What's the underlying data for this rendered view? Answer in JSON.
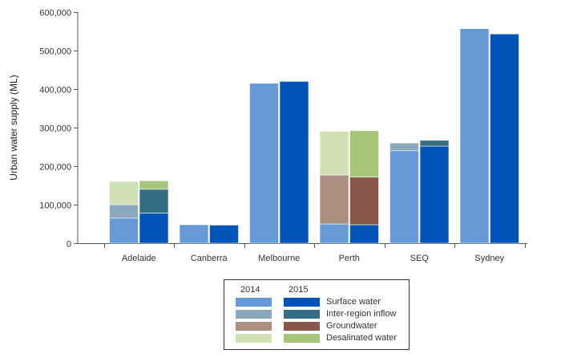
{
  "chart_data": {
    "type": "bar",
    "stacked": true,
    "grouped_by_year": true,
    "title": "",
    "xlabel": "",
    "ylabel": "Urban water supply (ML)",
    "ylim": [
      0,
      600000
    ],
    "yticks": [
      0,
      100000,
      200000,
      300000,
      400000,
      500000,
      600000
    ],
    "ytick_labels": [
      "0",
      "100,000",
      "200,000",
      "300,000",
      "400,000",
      "500,000",
      "600,000"
    ],
    "categories": [
      "Adelaide",
      "Canberra",
      "Melbourne",
      "Perth",
      "SEQ",
      "Sydney"
    ],
    "years": [
      "2014",
      "2015"
    ],
    "series": [
      {
        "name": "Surface water",
        "colors": {
          "2014": "#6699d6",
          "2015": "#0054b8"
        },
        "values": {
          "2014": [
            65000,
            48000,
            415000,
            50000,
            240000,
            557000
          ],
          "2015": [
            78000,
            47000,
            420000,
            48000,
            252000,
            543000
          ]
        }
      },
      {
        "name": "Inter-region inflow",
        "colors": {
          "2014": "#8aa9bc",
          "2015": "#336e86"
        },
        "values": {
          "2014": [
            35000,
            0,
            0,
            0,
            20000,
            0
          ],
          "2015": [
            62000,
            0,
            0,
            0,
            15000,
            0
          ]
        }
      },
      {
        "name": "Groundwater",
        "colors": {
          "2014": "#ac8f80",
          "2015": "#87584a"
        },
        "values": {
          "2014": [
            0,
            0,
            0,
            127000,
            0,
            0
          ],
          "2015": [
            0,
            0,
            0,
            124000,
            0,
            0
          ]
        }
      },
      {
        "name": "Desalinated water",
        "colors": {
          "2014": "#cfe1b3",
          "2015": "#a6c578"
        },
        "values": {
          "2014": [
            60000,
            0,
            0,
            113000,
            0,
            0
          ],
          "2015": [
            22000,
            0,
            0,
            120000,
            0,
            0
          ]
        }
      }
    ],
    "grid": false,
    "legend": {
      "placement": "bottom-center",
      "column_headers": [
        "2014",
        "2015"
      ],
      "entries": [
        "Surface water",
        "Inter-region inflow",
        "Groundwater",
        "Desalinated water"
      ]
    }
  }
}
